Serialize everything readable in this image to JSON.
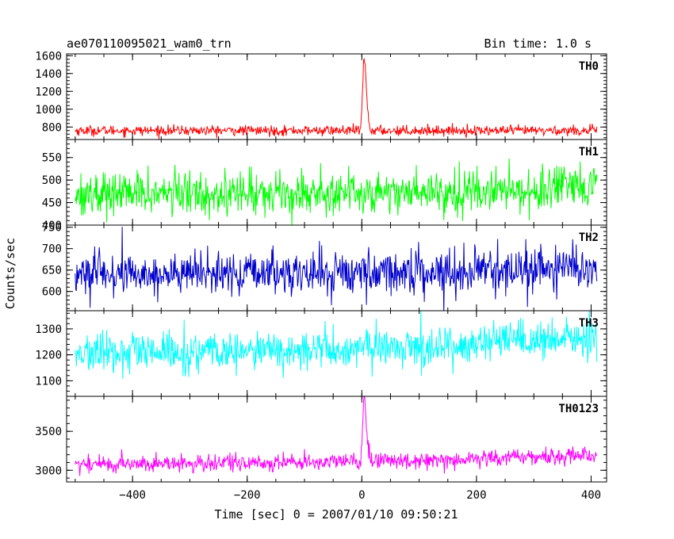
{
  "chart_data": {
    "type": "line",
    "title": "ae070110095021_wam0_trn",
    "bin_time_label": "Bin time: 1.0 s",
    "xlabel": "Time [sec] 0 = 2007/01/10 09:50:21",
    "ylabel": "Counts/sec",
    "xlim": [
      -515,
      427
    ],
    "x_ticks": [
      -400,
      -200,
      0,
      200,
      400
    ],
    "x_tick_labels": [
      "−400",
      "−200",
      "0",
      "200",
      "400"
    ],
    "x_start": -500,
    "x_end": 410,
    "bin_seconds": 1.0,
    "grid": false,
    "panels": [
      {
        "name": "TH0",
        "color": "#ff0000",
        "ylim": [
          660,
          1620
        ],
        "y_ticks": [
          800,
          1000,
          1200,
          1400,
          1600
        ],
        "y_tick_labels": [
          "800",
          "1000",
          "1200",
          "1400",
          "1600"
        ],
        "baseline": 760,
        "baseline_end": 760,
        "noise_sd": 28,
        "burst": {
          "peak_time": 4,
          "peak_value": 1560,
          "rise_sd": 2.5,
          "decay_sd": 4
        }
      },
      {
        "name": "TH1",
        "color": "#00ff00",
        "ylim": [
          400,
          590
        ],
        "y_ticks": [
          400,
          450,
          500,
          550
        ],
        "y_tick_labels": [
          "400",
          "450",
          "500",
          "550"
        ],
        "baseline": 470,
        "baseline_end": 480,
        "noise_sd": 24,
        "burst": null
      },
      {
        "name": "TH2",
        "color": "#0000cc",
        "ylim": [
          555,
          755
        ],
        "y_ticks": [
          600,
          650,
          700,
          750
        ],
        "y_tick_labels": [
          "600",
          "650",
          "700",
          "750"
        ],
        "baseline": 640,
        "baseline_end": 655,
        "noise_sd": 25,
        "burst": null
      },
      {
        "name": "TH3",
        "color": "#00ffff",
        "ylim": [
          1040,
          1370
        ],
        "y_ticks": [
          1100,
          1200,
          1300
        ],
        "y_tick_labels": [
          "1100",
          "1200",
          "1300"
        ],
        "baseline": 1205,
        "baseline_end": 1265,
        "noise_sd": 38,
        "burst": null
      },
      {
        "name": "TH0123",
        "color": "#ff00ff",
        "ylim": [
          2850,
          3950
        ],
        "y_ticks": [
          3000,
          3500
        ],
        "y_tick_labels": [
          "3000",
          "3500"
        ],
        "baseline": 3080,
        "baseline_end": 3200,
        "noise_sd": 55,
        "burst": {
          "peak_time": 4,
          "peak_value": 3880,
          "rise_sd": 2.5,
          "decay_sd": 4
        }
      }
    ]
  }
}
